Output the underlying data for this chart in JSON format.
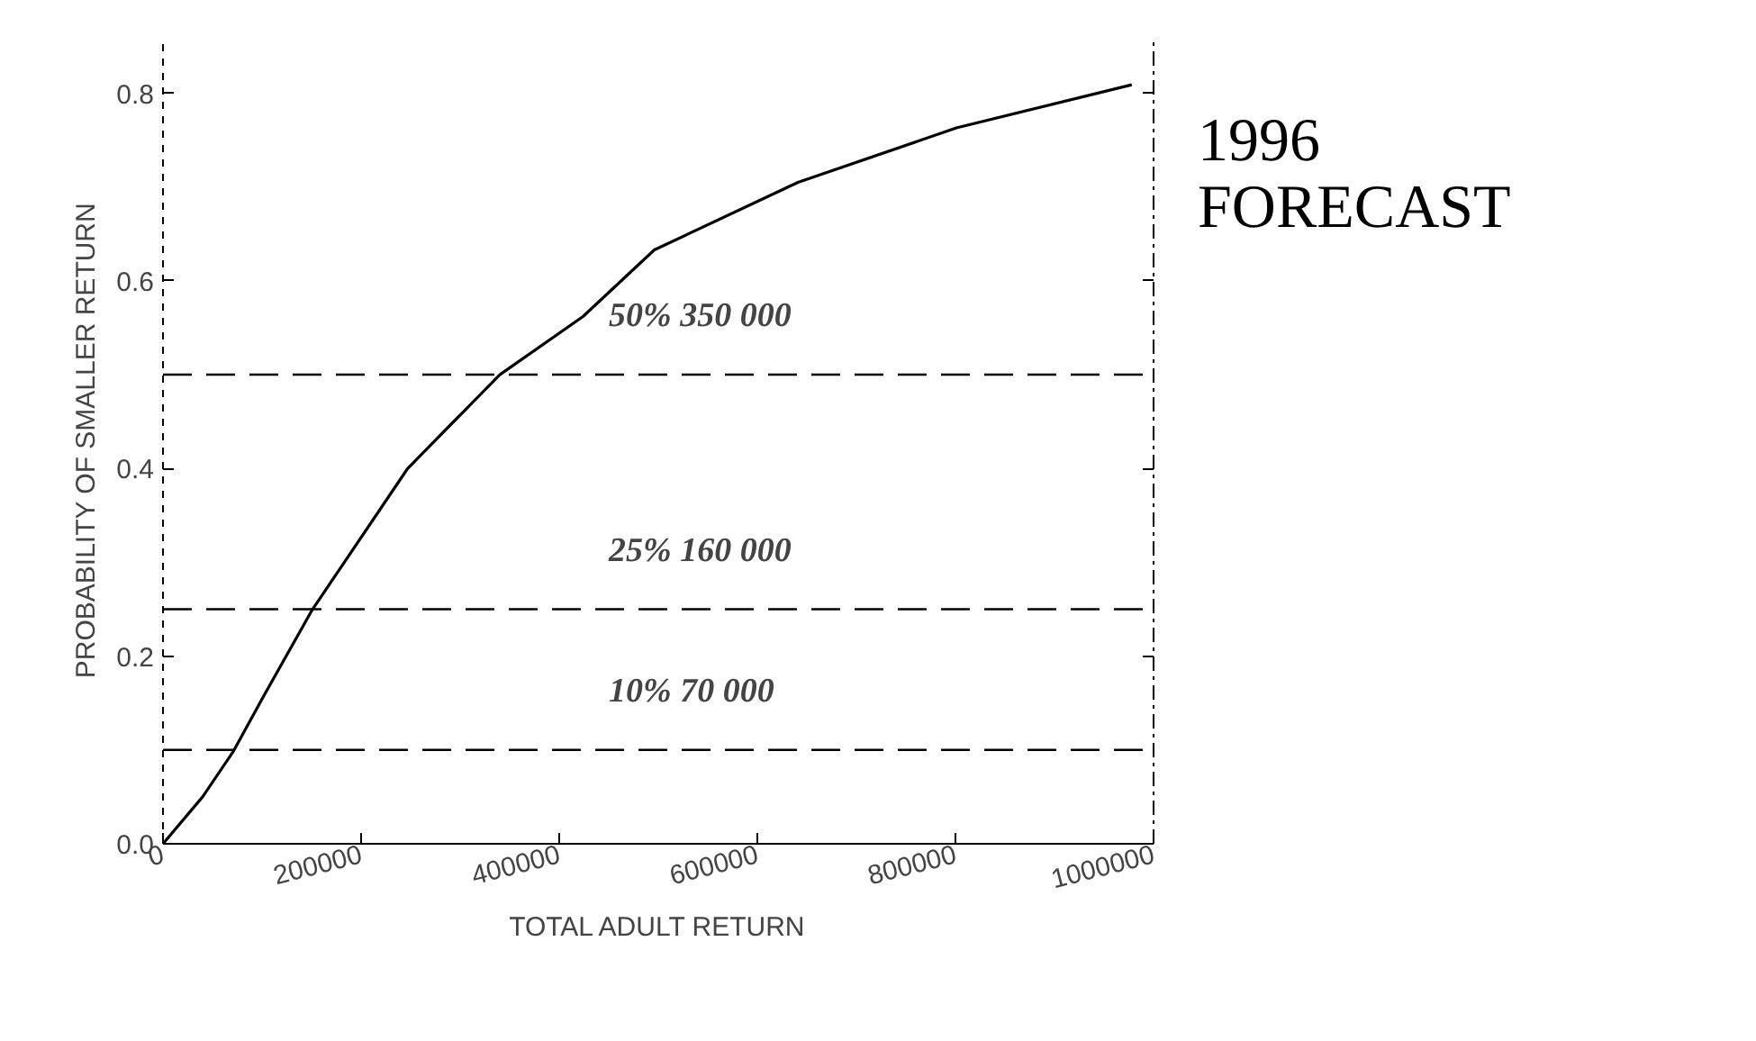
{
  "chart_data": {
    "type": "line",
    "title": "1996\nFORECAST",
    "xlabel": "TOTAL ADULT RETURN",
    "ylabel": "PROBABILITY OF SMALLER RETURN",
    "x": [
      0,
      40000,
      70700,
      103000,
      151000,
      247000,
      340000,
      424000,
      496000,
      641000,
      801000,
      978000
    ],
    "series": [
      {
        "color": "#000000",
        "values": [
          0,
          0.05,
          0.098,
          0.16,
          0.25,
          0.4,
          0.5,
          0.562,
          0.633,
          0.705,
          0.763,
          0.809
        ]
      }
    ],
    "xlim": [
      0,
      1000000
    ],
    "ylim": [
      0,
      0.86
    ],
    "xticks": [
      0,
      200000,
      400000,
      600000,
      800000,
      1000000
    ],
    "yticks": [
      {
        "value": 0,
        "label": "0.0"
      },
      {
        "value": 0.2,
        "label": "0.2"
      },
      {
        "value": 0.4,
        "label": "0.4"
      },
      {
        "value": 0.6,
        "label": "0.6"
      },
      {
        "value": 0.8,
        "label": "0.8"
      }
    ],
    "ref_lines": [
      {
        "axis": "y",
        "value": 0.5,
        "label": "50%   350 000",
        "line_style": "dashed",
        "color": "#000000"
      },
      {
        "axis": "y",
        "value": 0.25,
        "label": "25%   160 000",
        "line_style": "dashed",
        "color": "#000000"
      },
      {
        "axis": "y",
        "value": 0.1,
        "label": "10%   70 000",
        "line_style": "dashed",
        "color": "#000000"
      }
    ],
    "grid": false,
    "line_style": "solid",
    "marker": "none"
  }
}
